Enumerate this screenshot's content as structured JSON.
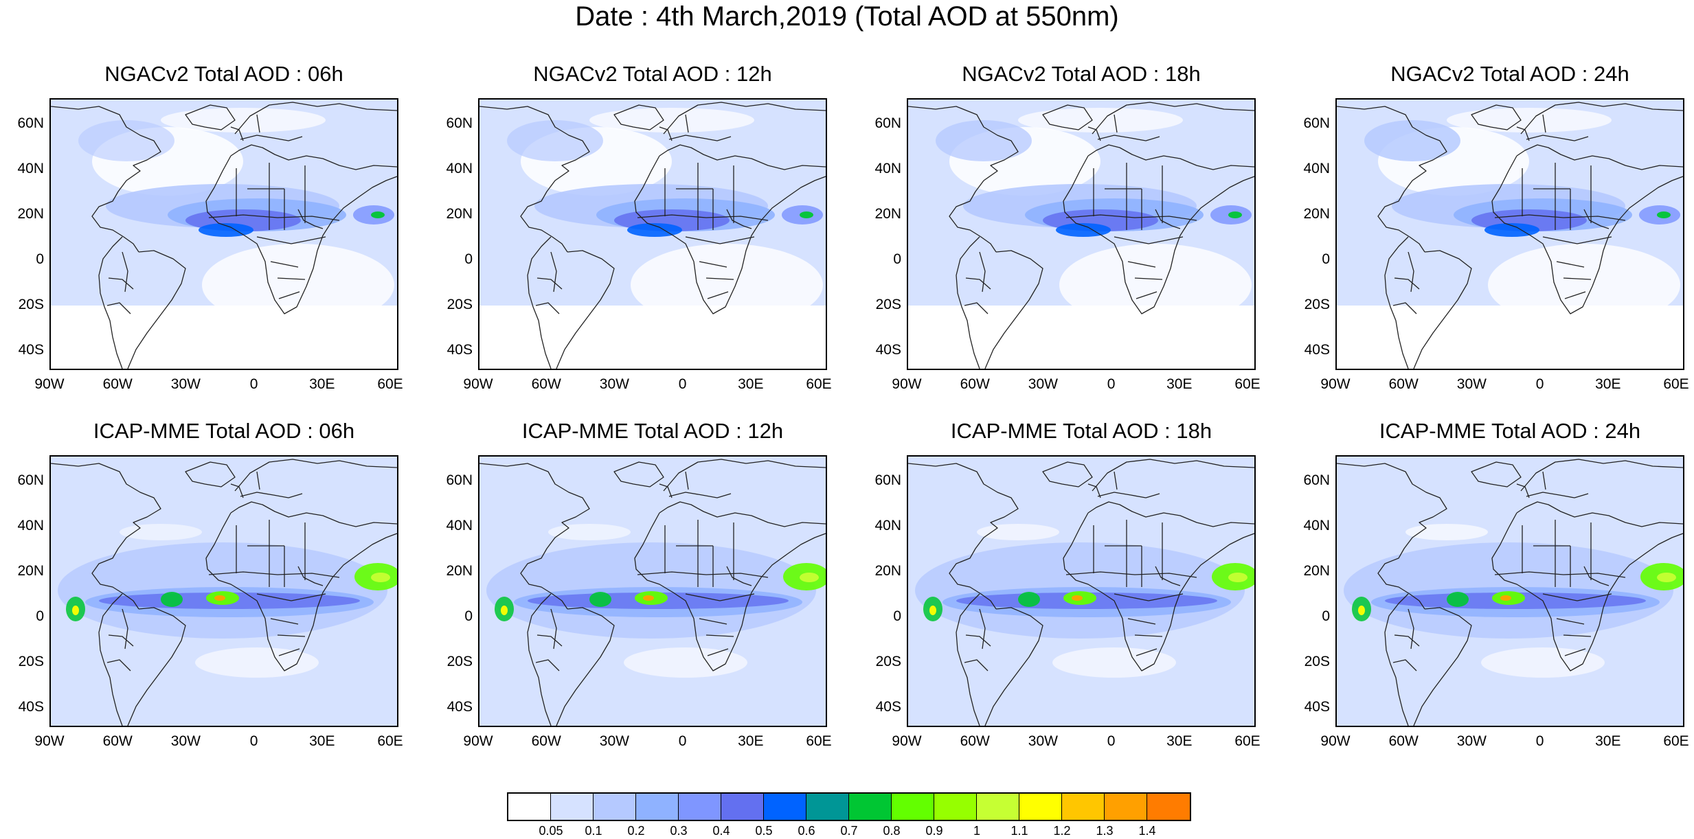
{
  "title": "Date : 4th March,2019 (Total AOD at 550nm)",
  "panels": [
    {
      "title": "NGACv2 Total AOD : 06h"
    },
    {
      "title": "NGACv2 Total AOD : 12h"
    },
    {
      "title": "NGACv2 Total AOD : 18h"
    },
    {
      "title": "NGACv2 Total AOD : 24h"
    },
    {
      "title": "ICAP-MME Total AOD : 06h"
    },
    {
      "title": "ICAP-MME Total AOD : 12h"
    },
    {
      "title": "ICAP-MME Total AOD : 18h"
    },
    {
      "title": "ICAP-MME Total AOD : 24h"
    }
  ],
  "lat_labels": [
    "60N",
    "40N",
    "20N",
    "0",
    "20S",
    "40S"
  ],
  "lon_labels": [
    "90W",
    "60W",
    "30W",
    "0",
    "30E",
    "60E"
  ],
  "colorbar": {
    "labels": [
      "0.05",
      "0.1",
      "0.2",
      "0.3",
      "0.4",
      "0.5",
      "0.6",
      "0.7",
      "0.8",
      "0.9",
      "1",
      "1.1",
      "1.2",
      "1.3",
      "1.4"
    ],
    "colors": [
      "#ffffff",
      "#d6e2ff",
      "#b5c9ff",
      "#8fb2ff",
      "#7f96ff",
      "#6370f0",
      "#0063ff",
      "#009696",
      "#00c633",
      "#63ff00",
      "#96ff00",
      "#c6ff33",
      "#ffff00",
      "#ffc600",
      "#ffa000",
      "#ff7c00",
      "#ff1900"
    ]
  }
}
